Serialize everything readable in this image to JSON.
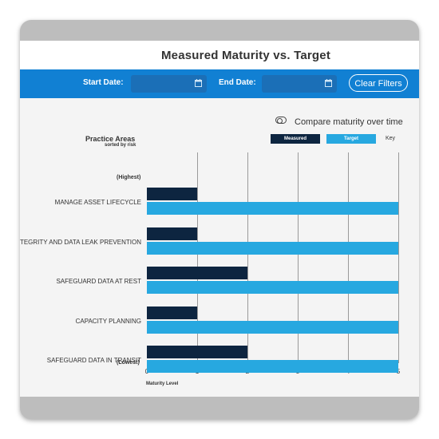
{
  "page_title": "Measured Maturity vs. Target",
  "filters": {
    "start_date_label": "Start Date:",
    "end_date_label": "End Date:",
    "start_date_value": "",
    "end_date_value": "",
    "calendar_icon": "calendar-icon",
    "clear_button": "Clear Filters"
  },
  "compare_toggle": {
    "label": "Compare maturity over time",
    "icon": "toggle-icon",
    "on": false
  },
  "legend": {
    "measured": "Measured",
    "target": "Target",
    "key": "Key"
  },
  "practice_areas": {
    "title": "Practice Areas",
    "subtitle": "sorted by risk",
    "highest": "(Highest)",
    "lowest": "(Lowest)"
  },
  "colors": {
    "brand_blue": "#1180d3",
    "measured": "#0d2540",
    "target": "#27a8e0"
  },
  "chart_data": {
    "type": "bar",
    "orientation": "horizontal",
    "categories": [
      "MANAGE ASSET LIFECYCLE",
      "TEGRITY AND DATA LEAK PREVENTION",
      "SAFEGUARD DATA AT REST",
      "CAPACITY PLANNING",
      "SAFEGUARD DATA IN TRANSIT"
    ],
    "series": [
      {
        "name": "Measured",
        "values": [
          1,
          1,
          2,
          1,
          2
        ]
      },
      {
        "name": "Target",
        "values": [
          5,
          5,
          5,
          5,
          5
        ]
      }
    ],
    "xlabel": "Maturity Level",
    "xlim": [
      0,
      5
    ],
    "xticks": [
      "0",
      "1",
      "2",
      "3",
      "4",
      "5"
    ],
    "grid": true,
    "legend_position": "top-right"
  }
}
